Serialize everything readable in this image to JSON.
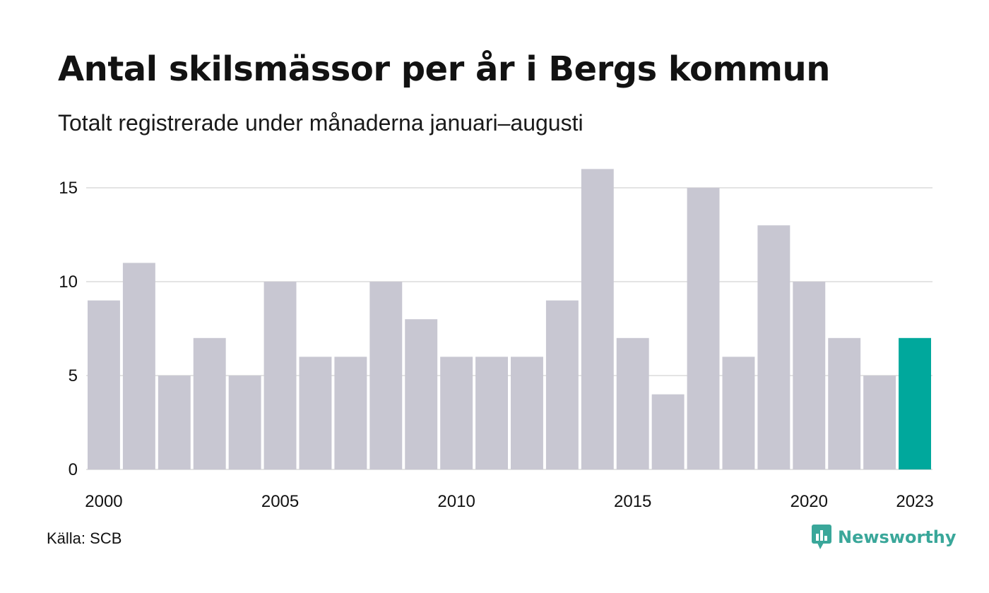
{
  "title": "Antal skilsmässor per år i Bergs kommun",
  "subtitle": "Totalt registrerade under månaderna januari–augusti",
  "source": "Källa: SCB",
  "brand": {
    "name": "Newsworthy",
    "icon": "newsworthy-logo-icon",
    "color": "#3aa79a"
  },
  "colors": {
    "bar": "#c8c7d2",
    "highlight": "#00a89c",
    "grid": "#e4e4e4",
    "text": "#111111"
  },
  "chart_data": {
    "type": "bar",
    "categories": [
      "2000",
      "2001",
      "2002",
      "2003",
      "2004",
      "2005",
      "2006",
      "2007",
      "2008",
      "2009",
      "2010",
      "2011",
      "2012",
      "2013",
      "2014",
      "2015",
      "2016",
      "2017",
      "2018",
      "2019",
      "2020",
      "2021",
      "2022",
      "2023"
    ],
    "values": [
      9,
      11,
      5,
      7,
      5,
      10,
      6,
      6,
      10,
      8,
      6,
      6,
      6,
      9,
      16,
      7,
      4,
      15,
      6,
      13,
      10,
      7,
      5,
      7
    ],
    "highlight_category": "2023",
    "x_tick_labels": [
      "2000",
      "2005",
      "2010",
      "2015",
      "2020",
      "2023"
    ],
    "y_ticks": [
      0,
      5,
      10,
      15
    ],
    "ylim": [
      0,
      16
    ],
    "grid": true,
    "legend": "none"
  }
}
